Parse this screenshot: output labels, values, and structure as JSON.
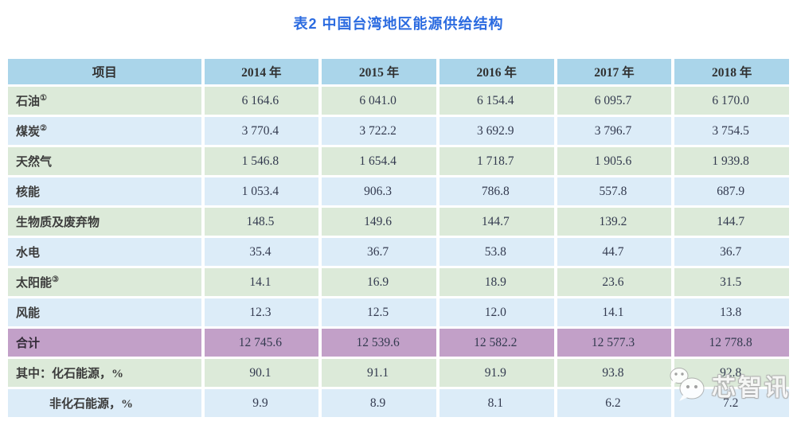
{
  "title": "表2 中国台湾地区能源供给结构",
  "colors": {
    "title_blue": "#2b6be0",
    "header_bg": "#aad5ea",
    "row_green": "#dcead9",
    "row_blue": "#dcecf8",
    "row_purple": "#c2a0c8",
    "label_text": "#3c3c3c",
    "number_text": "#333a4f"
  },
  "table": {
    "columns": [
      "项目",
      "2014 年",
      "2015 年",
      "2016 年",
      "2017 年",
      "2018 年"
    ],
    "rows": [
      {
        "label": "石油",
        "sup": "①",
        "tone": "green",
        "indent": false,
        "values": [
          "6 164.6",
          "6 041.0",
          "6 154.4",
          "6 095.7",
          "6 170.0"
        ]
      },
      {
        "label": "煤炭",
        "sup": "②",
        "tone": "blue",
        "indent": false,
        "values": [
          "3 770.4",
          "3 722.2",
          "3 692.9",
          "3 796.7",
          "3 754.5"
        ]
      },
      {
        "label": "天然气",
        "sup": "",
        "tone": "green",
        "indent": false,
        "values": [
          "1 546.8",
          "1 654.4",
          "1 718.7",
          "1 905.6",
          "1 939.8"
        ]
      },
      {
        "label": "核能",
        "sup": "",
        "tone": "blue",
        "indent": false,
        "values": [
          "1 053.4",
          "906.3",
          "786.8",
          "557.8",
          "687.9"
        ]
      },
      {
        "label": "生物质及废弃物",
        "sup": "",
        "tone": "green",
        "indent": false,
        "values": [
          "148.5",
          "149.6",
          "144.7",
          "139.2",
          "144.7"
        ]
      },
      {
        "label": "水电",
        "sup": "",
        "tone": "blue",
        "indent": false,
        "values": [
          "35.4",
          "36.7",
          "53.8",
          "44.7",
          "36.7"
        ]
      },
      {
        "label": "太阳能",
        "sup": "③",
        "tone": "green",
        "indent": false,
        "values": [
          "14.1",
          "16.9",
          "18.9",
          "23.6",
          "31.5"
        ]
      },
      {
        "label": "风能",
        "sup": "",
        "tone": "blue",
        "indent": false,
        "values": [
          "12.3",
          "12.5",
          "12.0",
          "14.1",
          "13.8"
        ]
      },
      {
        "label": "合计",
        "sup": "",
        "tone": "purple",
        "indent": false,
        "values": [
          "12 745.6",
          "12 539.6",
          "12 582.2",
          "12 577.3",
          "12 778.8"
        ]
      },
      {
        "label": "其中：化石能源，%",
        "sup": "",
        "tone": "green",
        "indent": false,
        "values": [
          "90.1",
          "91.1",
          "91.9",
          "93.8",
          "92.8"
        ]
      },
      {
        "label": "非化石能源，%",
        "sup": "",
        "tone": "blue",
        "indent": true,
        "values": [
          "9.9",
          "8.9",
          "8.1",
          "6.2",
          "7.2"
        ]
      }
    ]
  },
  "watermark": {
    "text": "芯智讯"
  }
}
